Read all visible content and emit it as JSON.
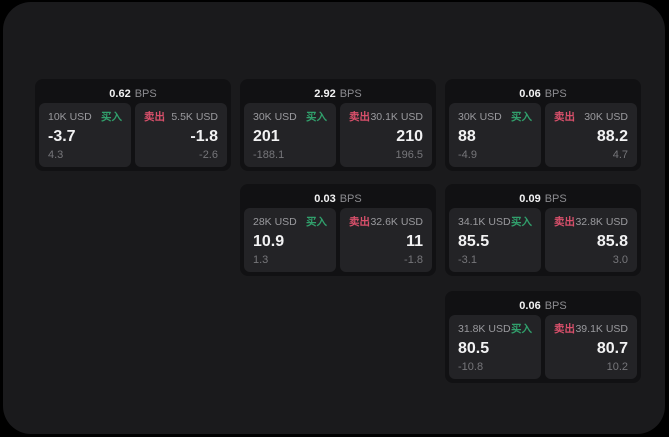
{
  "labels": {
    "bps_unit": "BPS",
    "buy": "买入",
    "sell": "卖出"
  },
  "colors": {
    "buy": "#31a06c",
    "sell": "#d9506b",
    "panel_bg": "#1a1a1c",
    "card_bg": "#111113",
    "subpanel_bg": "#232326"
  },
  "cards": [
    {
      "bps": "0.62",
      "buy": {
        "amount": "10K USD",
        "value": "-3.7",
        "delta": "4.3"
      },
      "sell": {
        "amount": "5.5K USD",
        "value": "-1.8",
        "delta": "-2.6"
      }
    },
    {
      "bps": "2.92",
      "buy": {
        "amount": "30K USD",
        "value": "201",
        "delta": "-188.1"
      },
      "sell": {
        "amount": "30.1K USD",
        "value": "210",
        "delta": "196.5"
      }
    },
    {
      "bps": "0.06",
      "buy": {
        "amount": "30K USD",
        "value": "88",
        "delta": "-4.9"
      },
      "sell": {
        "amount": "30K USD",
        "value": "88.2",
        "delta": "4.7"
      }
    },
    {
      "bps": "0.03",
      "buy": {
        "amount": "28K USD",
        "value": "10.9",
        "delta": "1.3"
      },
      "sell": {
        "amount": "32.6K USD",
        "value": "11",
        "delta": "-1.8"
      }
    },
    {
      "bps": "0.09",
      "buy": {
        "amount": "34.1K USD",
        "value": "85.5",
        "delta": "-3.1"
      },
      "sell": {
        "amount": "32.8K USD",
        "value": "85.8",
        "delta": "3.0"
      }
    },
    {
      "bps": "0.06",
      "buy": {
        "amount": "31.8K USD",
        "value": "80.5",
        "delta": "-10.8"
      },
      "sell": {
        "amount": "39.1K USD",
        "value": "80.7",
        "delta": "10.2"
      }
    }
  ]
}
